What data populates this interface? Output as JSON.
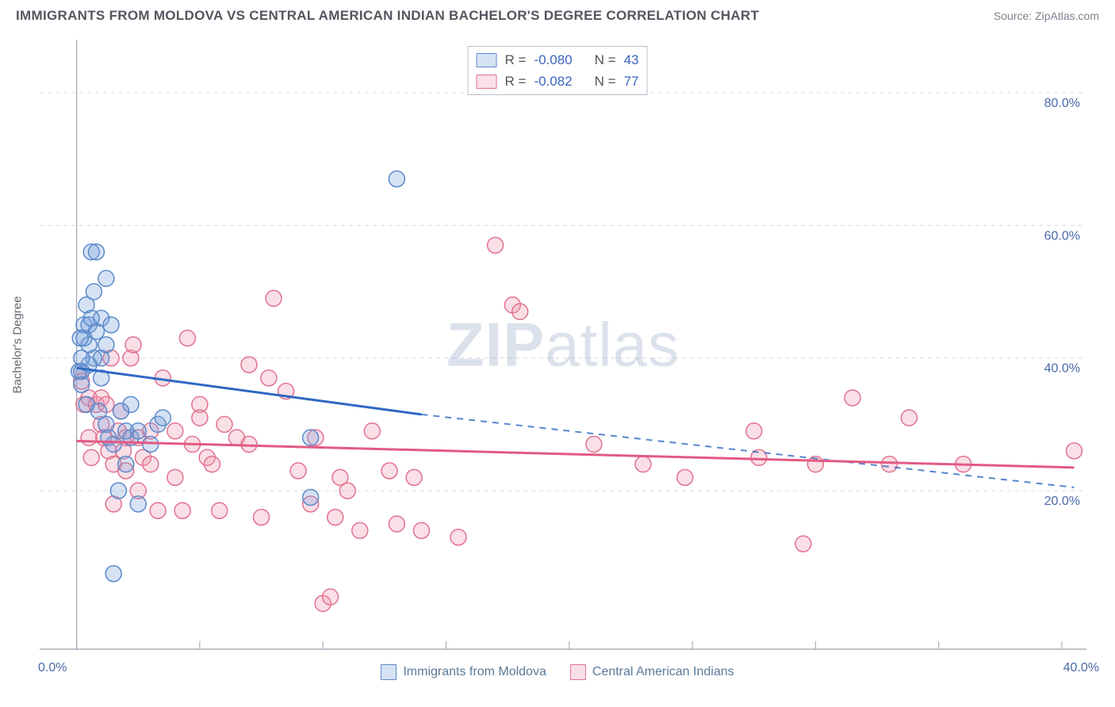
{
  "header": {
    "title": "IMMIGRANTS FROM MOLDOVA VS CENTRAL AMERICAN INDIAN BACHELOR'S DEGREE CORRELATION CHART",
    "source": "Source: ZipAtlas.com"
  },
  "watermark": {
    "zip": "ZIP",
    "atlas": "atlas"
  },
  "chart": {
    "type": "scatter_with_regression",
    "ylabel": "Bachelor's Degree",
    "xlim": [
      -1.5,
      41
    ],
    "ylim": [
      -4,
      88
    ],
    "x_ticks": [
      0,
      40
    ],
    "x_tick_labels": [
      "0.0%",
      "40.0%"
    ],
    "y_grid_values": [
      20,
      40,
      60,
      80
    ],
    "y_grid_labels": [
      "20.0%",
      "40.0%",
      "60.0%",
      "80.0%"
    ],
    "y_label_color": "#4a6aa8",
    "grid_color": "#d8d8e0",
    "axis_color": "#a0a0b0",
    "background_color": "#ffffff",
    "marker_radius": 10,
    "marker_stroke_width": 1.5,
    "series": [
      {
        "name": "Immigrants from Moldova",
        "fill": "rgba(120,160,220,0.30)",
        "stroke": "#5b8acb",
        "line_color": "#2f68c4",
        "R": "-0.080",
        "N": "43",
        "reg_solid": {
          "x1": 0.0,
          "y1": 38.5,
          "x2": 14.0,
          "y2": 31.5
        },
        "reg_dashed": {
          "x1": 14.0,
          "y1": 31.5,
          "x2": 40.5,
          "y2": 20.5
        },
        "points": [
          [
            0.2,
            38
          ],
          [
            0.2,
            36
          ],
          [
            0.3,
            43
          ],
          [
            0.3,
            45
          ],
          [
            0.4,
            48
          ],
          [
            0.5,
            42
          ],
          [
            0.5,
            45
          ],
          [
            0.6,
            56
          ],
          [
            0.8,
            56
          ],
          [
            0.7,
            50
          ],
          [
            0.8,
            44
          ],
          [
            1.0,
            40
          ],
          [
            1.0,
            46
          ],
          [
            1.2,
            42
          ],
          [
            1.2,
            30
          ],
          [
            0.9,
            32
          ],
          [
            1.3,
            28
          ],
          [
            1.5,
            27
          ],
          [
            1.7,
            20
          ],
          [
            1.8,
            32
          ],
          [
            1.5,
            7.5
          ],
          [
            2.0,
            24
          ],
          [
            2.2,
            33
          ],
          [
            2.2,
            28
          ],
          [
            2.5,
            18
          ],
          [
            2.5,
            29
          ],
          [
            3.0,
            27
          ],
          [
            3.3,
            30
          ],
          [
            3.5,
            31
          ],
          [
            9.5,
            28
          ],
          [
            9.5,
            19
          ],
          [
            13.0,
            67
          ],
          [
            0.1,
            38
          ],
          [
            1.0,
            37
          ],
          [
            0.7,
            40
          ],
          [
            1.2,
            52
          ],
          [
            1.4,
            45
          ],
          [
            0.5,
            39
          ],
          [
            0.6,
            46
          ],
          [
            0.4,
            33
          ],
          [
            2.0,
            29
          ],
          [
            0.2,
            40
          ],
          [
            0.15,
            43
          ]
        ]
      },
      {
        "name": "Central American Indians",
        "fill": "rgba(240,150,175,0.30)",
        "stroke": "#e2728f",
        "line_color": "#e25a84",
        "R": "-0.082",
        "N": "77",
        "reg_solid": {
          "x1": 0.0,
          "y1": 27.5,
          "x2": 40.5,
          "y2": 23.5
        },
        "reg_dashed": null,
        "points": [
          [
            0.2,
            38
          ],
          [
            0.2,
            36.5
          ],
          [
            0.3,
            33
          ],
          [
            0.5,
            34
          ],
          [
            0.5,
            28
          ],
          [
            0.6,
            25
          ],
          [
            0.8,
            33
          ],
          [
            1.0,
            34
          ],
          [
            1.0,
            30
          ],
          [
            1.1,
            28
          ],
          [
            1.2,
            33
          ],
          [
            1.3,
            26
          ],
          [
            1.4,
            40
          ],
          [
            1.5,
            24
          ],
          [
            1.5,
            18
          ],
          [
            1.7,
            29
          ],
          [
            1.8,
            32
          ],
          [
            1.9,
            26
          ],
          [
            2.0,
            23
          ],
          [
            2.0,
            28
          ],
          [
            2.2,
            40
          ],
          [
            2.3,
            42
          ],
          [
            2.5,
            28
          ],
          [
            2.5,
            20
          ],
          [
            2.7,
            25
          ],
          [
            3.0,
            29
          ],
          [
            3.0,
            24
          ],
          [
            3.3,
            17
          ],
          [
            3.5,
            37
          ],
          [
            4.0,
            29
          ],
          [
            4.0,
            22
          ],
          [
            4.3,
            17
          ],
          [
            4.5,
            43
          ],
          [
            4.7,
            27
          ],
          [
            5.0,
            33
          ],
          [
            5.0,
            31
          ],
          [
            5.3,
            25
          ],
          [
            5.5,
            24
          ],
          [
            5.8,
            17
          ],
          [
            6.0,
            30
          ],
          [
            6.5,
            28
          ],
          [
            7.0,
            39
          ],
          [
            7.0,
            27
          ],
          [
            7.5,
            16
          ],
          [
            7.8,
            37
          ],
          [
            8.0,
            49
          ],
          [
            8.5,
            35
          ],
          [
            9.0,
            23
          ],
          [
            9.5,
            18
          ],
          [
            9.7,
            28
          ],
          [
            10.0,
            3
          ],
          [
            10.3,
            4
          ],
          [
            10.5,
            16
          ],
          [
            10.7,
            22
          ],
          [
            11.0,
            20
          ],
          [
            11.5,
            14
          ],
          [
            12.0,
            29
          ],
          [
            12.7,
            23
          ],
          [
            13.0,
            15
          ],
          [
            13.7,
            22
          ],
          [
            14.0,
            14
          ],
          [
            15.5,
            13
          ],
          [
            17.0,
            57
          ],
          [
            17.7,
            48
          ],
          [
            18.0,
            47
          ],
          [
            21.0,
            27
          ],
          [
            23.0,
            24
          ],
          [
            24.7,
            22
          ],
          [
            27.5,
            29
          ],
          [
            27.7,
            25
          ],
          [
            30.0,
            24
          ],
          [
            31.5,
            34
          ],
          [
            33.0,
            24
          ],
          [
            33.8,
            31
          ],
          [
            36.0,
            24
          ],
          [
            29.5,
            12
          ],
          [
            40.5,
            26
          ]
        ]
      }
    ]
  },
  "footer_legend": {
    "series1": "Immigrants from Moldova",
    "series2": "Central American Indians"
  },
  "rn_legend": {
    "r_label": "R =",
    "n_label": "N ="
  }
}
